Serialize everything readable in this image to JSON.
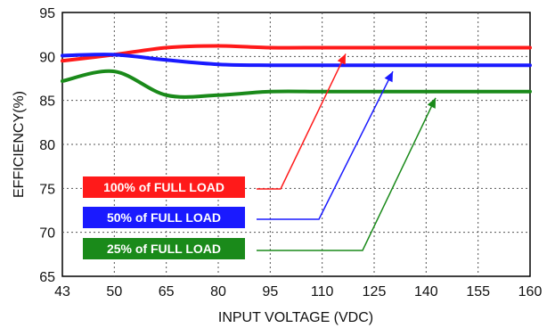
{
  "chart_data": {
    "type": "line",
    "xlabel": "INPUT VOLTAGE (VDC)",
    "ylabel": "EFFICIENCY(%)",
    "x_ticks": [
      "43",
      "50",
      "65",
      "80",
      "95",
      "110",
      "125",
      "140",
      "155",
      "160"
    ],
    "y_ticks": [
      "65",
      "70",
      "75",
      "80",
      "85",
      "90",
      "95"
    ],
    "ylim": [
      65,
      95
    ],
    "grid": true,
    "series": [
      {
        "name": "100% of FULL LOAD",
        "color": "#ff1a1a",
        "points": [
          {
            "x": "43",
            "y": 89.5
          },
          {
            "x": "50",
            "y": 90.2
          },
          {
            "x": "65",
            "y": 91.0
          },
          {
            "x": "80",
            "y": 91.2
          },
          {
            "x": "95",
            "y": 91.0
          },
          {
            "x": "110",
            "y": 91.0
          },
          {
            "x": "125",
            "y": 91.0
          },
          {
            "x": "140",
            "y": 91.0
          },
          {
            "x": "155",
            "y": 91.0
          },
          {
            "x": "160",
            "y": 91.0
          }
        ]
      },
      {
        "name": "50% of FULL LOAD",
        "color": "#1a1aff",
        "points": [
          {
            "x": "43",
            "y": 90.1
          },
          {
            "x": "50",
            "y": 90.2
          },
          {
            "x": "65",
            "y": 89.6
          },
          {
            "x": "80",
            "y": 89.1
          },
          {
            "x": "95",
            "y": 89.0
          },
          {
            "x": "110",
            "y": 89.0
          },
          {
            "x": "125",
            "y": 89.0
          },
          {
            "x": "140",
            "y": 89.0
          },
          {
            "x": "155",
            "y": 89.0
          },
          {
            "x": "160",
            "y": 89.0
          }
        ]
      },
      {
        "name": "25% of FULL LOAD",
        "color": "#1a8a1a",
        "points": [
          {
            "x": "43",
            "y": 87.2
          },
          {
            "x": "50",
            "y": 88.3
          },
          {
            "x": "65",
            "y": 85.6
          },
          {
            "x": "80",
            "y": 85.6
          },
          {
            "x": "95",
            "y": 86.0
          },
          {
            "x": "110",
            "y": 86.0
          },
          {
            "x": "125",
            "y": 86.0
          },
          {
            "x": "140",
            "y": 86.0
          },
          {
            "x": "155",
            "y": 86.0
          },
          {
            "x": "160",
            "y": 86.0
          }
        ]
      }
    ],
    "legend": [
      {
        "label": "100% of FULL LOAD",
        "color": "#ff1a1a"
      },
      {
        "label": "50% of FULL LOAD",
        "color": "#1a1aff"
      },
      {
        "label": "25% of FULL LOAD",
        "color": "#1a8a1a"
      }
    ]
  }
}
